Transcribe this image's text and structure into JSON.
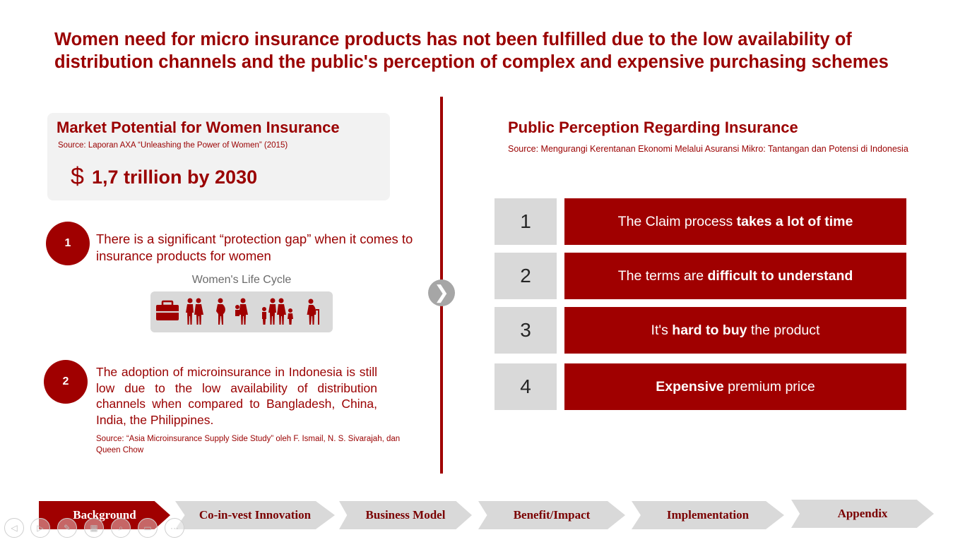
{
  "title": "Women need for micro insurance products has not been fulfilled due to the low availability of distribution channels and the public's perception of complex and expensive purchasing schemes",
  "market": {
    "heading": "Market Potential for Women Insurance",
    "source": "Source: Laporan AXA “Unleashing the Power of Women” (2015)",
    "icon": "dollar-icon",
    "dollar_symbol": "$",
    "value": "1,7 trillion by 2030"
  },
  "points": [
    {
      "number": "1",
      "text": "There is a significant “protection gap” when it comes to insurance products for women"
    },
    {
      "number": "2",
      "text": "The adoption of microinsurance in Indonesia is still low due to the low availability of distribution channels when compared to Bangladesh, China, India, the Philippines.",
      "source": "Source: “Asia Microinsurance Supply Side Study” oleh F. Ismail, N. S. Sivarajah, dan Queen Chow"
    }
  ],
  "lifecycle": {
    "title": "Women's Life Cycle",
    "icons": [
      "briefcase-icon",
      "couple-icon",
      "pregnant-woman-icon",
      "mother-child-icon",
      "family-icon",
      "elderly-woman-icon"
    ]
  },
  "perception": {
    "heading": "Public Perception Regarding Insurance",
    "source": "Source: Mengurangi Kerentanan Ekonomi Melalui Asuransi Mikro: Tantangan dan Potensi di Indonesia",
    "items": [
      {
        "number": "1",
        "pre": "The Claim process ",
        "bold": "takes a lot of time",
        "post": ""
      },
      {
        "number": "2",
        "pre": "The terms are ",
        "bold": "difficult to understand",
        "post": ""
      },
      {
        "number": "3",
        "pre": "It's ",
        "bold": "hard to buy",
        "post": " the product"
      },
      {
        "number": "4",
        "pre": "",
        "bold": "Expensive",
        "post": " premium price"
      }
    ]
  },
  "next_icon": "❯",
  "nav": {
    "items": [
      "Background",
      "Co-in-vest Innovation",
      "Business Model",
      "Benefit/Impact",
      "Implementation",
      "Appendix"
    ],
    "active": "Background"
  },
  "toolbar": {
    "icons": [
      "previous-slide-icon",
      "next-slide-icon",
      "pen-icon",
      "slides-grid-icon",
      "zoom-icon",
      "screen-icon",
      "more-options-icon"
    ],
    "glyphs": [
      "◁",
      "▷",
      "✎",
      "▦",
      "⌕",
      "▭",
      "···"
    ]
  },
  "colors": {
    "brand_red": "#a00000",
    "panel_gray": "#f2f2f2",
    "box_gray": "#d9d9d9"
  }
}
